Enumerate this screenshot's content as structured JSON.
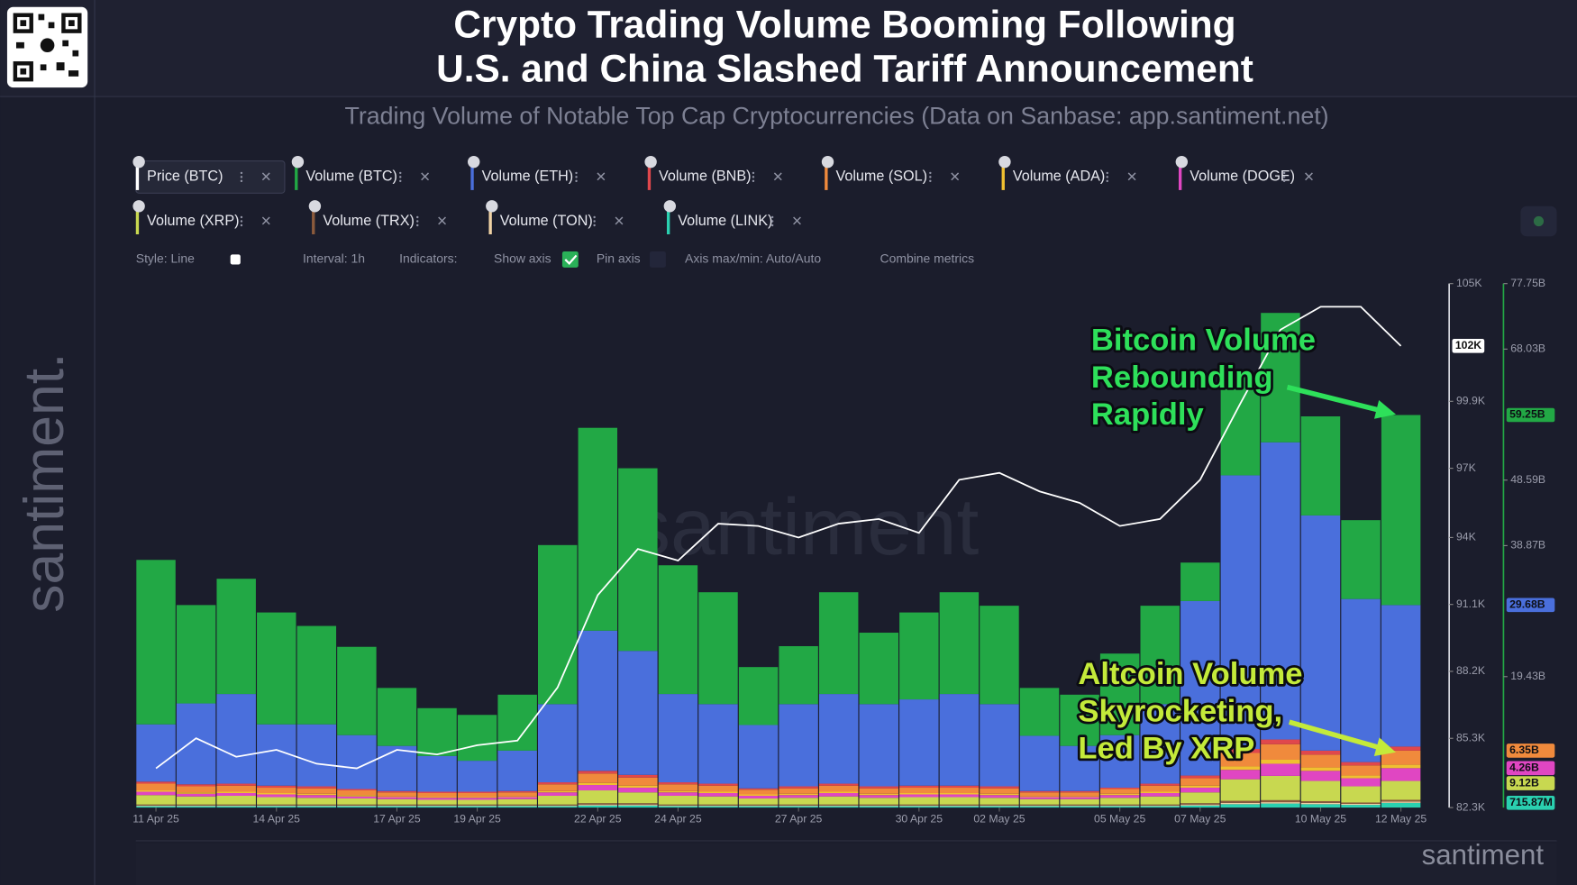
{
  "header": {
    "title": [
      "Crypto Trading Volume Booming Following",
      "U.S. and China Slashed Tariff Announcement"
    ],
    "subtitle": "Trading Volume of Notable Top Cap Cryptocurrencies (Data on Sanbase: app.santiment.net)"
  },
  "branding": {
    "side": "santiment.",
    "corner": "santiment",
    "center": "santiment"
  },
  "toolbar": [
    "Style: Line",
    "Interval: 1h",
    "Indicators:",
    "Show axis",
    "Pin axis",
    "Axis max/min: Auto/Auto",
    "Combine metrics"
  ],
  "chart_data": {
    "type": "stacked_bar",
    "x": [
      "2025-04-11",
      "2025-04-12",
      "2025-04-13",
      "2025-04-14",
      "2025-04-15",
      "2025-04-16",
      "2025-04-17",
      "2025-04-18",
      "2025-04-19",
      "2025-04-20",
      "2025-04-21",
      "2025-04-22",
      "2025-04-23",
      "2025-04-24",
      "2025-04-25",
      "2025-04-26",
      "2025-04-27",
      "2025-04-28",
      "2025-04-29",
      "2025-04-30",
      "2025-05-01",
      "2025-05-02",
      "2025-05-03",
      "2025-05-04",
      "2025-05-05",
      "2025-05-06",
      "2025-05-07",
      "2025-05-08",
      "2025-05-09",
      "2025-05-10",
      "2025-05-11",
      "2025-05-12"
    ],
    "xlim": [
      "2025-04-11",
      "2025-05-12"
    ],
    "xticks": [
      {
        "value": "2025-04-11",
        "label": "11 Apr 25"
      },
      {
        "value": "2025-04-14",
        "label": "14 Apr 25"
      },
      {
        "value": "2025-04-17",
        "label": "17 Apr 25"
      },
      {
        "value": "2025-04-19",
        "label": "19 Apr 25"
      },
      {
        "value": "2025-04-22",
        "label": "22 Apr 25"
      },
      {
        "value": "2025-04-24",
        "label": "24 Apr 25"
      },
      {
        "value": "2025-04-27",
        "label": "27 Apr 25"
      },
      {
        "value": "2025-04-30",
        "label": "30 Apr 25"
      },
      {
        "value": "2025-05-02",
        "label": "02 May 25"
      },
      {
        "value": "2025-05-05",
        "label": "05 May 25"
      },
      {
        "value": "2025-05-07",
        "label": "07 May 25"
      },
      {
        "value": "2025-05-10",
        "label": "10 May 25"
      },
      {
        "value": "2025-05-12",
        "label": "12 May 25"
      }
    ],
    "ylim": [
      82.3,
      105
    ],
    "yticks": [
      {
        "value": 82.3,
        "label": "82.3K"
      },
      {
        "value": 85.3,
        "label": "85.3K"
      },
      {
        "value": 88.2,
        "label": "88.2K"
      },
      {
        "value": 91.1,
        "label": "91.1K"
      },
      {
        "value": 94,
        "label": "94K"
      },
      {
        "value": 97,
        "label": "97K"
      },
      {
        "value": 99.9,
        "label": "99.9K"
      },
      {
        "value": 105,
        "label": "105K"
      }
    ],
    "y2lim": [
      0,
      77.75
    ],
    "y2ticks": [
      {
        "value": 19.43,
        "label": "19.43B"
      },
      {
        "value": 38.87,
        "label": "38.87B"
      },
      {
        "value": 48.59,
        "label": "48.59B"
      },
      {
        "value": 68.03,
        "label": "68.03B"
      },
      {
        "value": 77.75,
        "label": "77.75B"
      }
    ],
    "series": [
      {
        "name": "Price (BTC)",
        "type": "line",
        "axis": "y",
        "color": "#ffffff",
        "badge": "102K",
        "values": [
          84.0,
          85.3,
          84.5,
          84.8,
          84.2,
          84.0,
          84.8,
          84.6,
          85.0,
          85.2,
          87.5,
          91.5,
          93.5,
          93.0,
          94.6,
          94.5,
          94.0,
          94.6,
          94.8,
          94.2,
          96.5,
          96.8,
          96.0,
          95.5,
          94.5,
          94.8,
          96.5,
          99.8,
          103.0,
          104.0,
          104.0,
          102.3
        ]
      },
      {
        "name": "Volume (BTC)",
        "axis": "y2",
        "color": "#22a845",
        "badge": "59.25B",
        "values": [
          24.4,
          14.6,
          17.1,
          16.6,
          14.6,
          13.1,
          8.6,
          7.1,
          6.8,
          8.3,
          23.6,
          30.1,
          27.1,
          19.1,
          16.6,
          8.6,
          8.6,
          15.1,
          10.6,
          12.9,
          15.1,
          14.6,
          7.1,
          7.6,
          12.1,
          14.6,
          5.7,
          14.8,
          19.2,
          14.7,
          11.7,
          28.2
        ]
      },
      {
        "name": "Volume (ETH)",
        "axis": "y2",
        "color": "#4a6fdc",
        "badge": "29.68B",
        "values": [
          8.5,
          12.0,
          13.3,
          9.1,
          9.2,
          8.0,
          6.7,
          5.3,
          4.6,
          6.0,
          11.6,
          20.8,
          18.4,
          13.1,
          11.8,
          9.4,
          12.2,
          13.3,
          12.2,
          12.8,
          13.6,
          12.2,
          8.2,
          6.7,
          7.8,
          11.8,
          25.9,
          40.6,
          44.1,
          34.9,
          24.2,
          21.0
        ]
      },
      {
        "name": "Volume (BNB)",
        "axis": "y2",
        "color": "#e0474c",
        "values": [
          0.3,
          0.3,
          0.3,
          0.3,
          0.3,
          0.2,
          0.2,
          0.2,
          0.2,
          0.2,
          0.3,
          0.4,
          0.4,
          0.3,
          0.3,
          0.2,
          0.3,
          0.3,
          0.3,
          0.3,
          0.3,
          0.3,
          0.2,
          0.2,
          0.2,
          0.3,
          0.4,
          0.6,
          0.7,
          0.6,
          0.5,
          0.6
        ]
      },
      {
        "name": "Volume (SOL)",
        "axis": "y2",
        "color": "#f08a3c",
        "badge": "6.35B",
        "values": [
          1.0,
          0.9,
          0.9,
          0.8,
          0.8,
          0.7,
          0.6,
          0.6,
          0.6,
          0.6,
          1.0,
          1.4,
          1.2,
          1.0,
          0.9,
          0.7,
          0.8,
          0.9,
          0.8,
          0.8,
          0.8,
          0.8,
          0.6,
          0.6,
          0.7,
          0.9,
          1.1,
          2.0,
          2.3,
          1.9,
          1.5,
          2.1
        ]
      },
      {
        "name": "Volume (ADA)",
        "axis": "y2",
        "color": "#f0c030",
        "values": [
          0.2,
          0.2,
          0.2,
          0.2,
          0.2,
          0.2,
          0.1,
          0.1,
          0.1,
          0.1,
          0.2,
          0.3,
          0.3,
          0.2,
          0.2,
          0.2,
          0.2,
          0.2,
          0.2,
          0.2,
          0.2,
          0.2,
          0.1,
          0.1,
          0.2,
          0.2,
          0.3,
          0.5,
          0.6,
          0.5,
          0.4,
          0.5
        ]
      },
      {
        "name": "Volume (DOGE)",
        "axis": "y2",
        "color": "#e046c2",
        "badge": "4.26B",
        "values": [
          0.5,
          0.4,
          0.4,
          0.4,
          0.4,
          0.3,
          0.3,
          0.3,
          0.3,
          0.3,
          0.5,
          0.8,
          0.7,
          0.5,
          0.5,
          0.4,
          0.4,
          0.5,
          0.4,
          0.4,
          0.4,
          0.4,
          0.3,
          0.3,
          0.4,
          0.5,
          0.7,
          1.4,
          1.8,
          1.5,
          1.2,
          1.9
        ]
      },
      {
        "name": "Volume (XRP)",
        "axis": "y2",
        "color": "#c8d850",
        "badge": "9.12B",
        "values": [
          1.4,
          1.2,
          1.3,
          1.1,
          1.0,
          0.9,
          0.8,
          0.7,
          0.7,
          0.8,
          1.3,
          1.9,
          1.6,
          1.3,
          1.2,
          0.9,
          1.0,
          1.2,
          1.0,
          1.1,
          1.1,
          1.0,
          0.8,
          0.8,
          1.0,
          1.2,
          1.6,
          3.2,
          3.6,
          3.0,
          2.4,
          2.8
        ]
      },
      {
        "name": "Volume (TRX)",
        "axis": "y2",
        "color": "#8b5a3c",
        "values": [
          0.15,
          0.15,
          0.15,
          0.15,
          0.15,
          0.15,
          0.15,
          0.15,
          0.15,
          0.15,
          0.15,
          0.2,
          0.2,
          0.15,
          0.15,
          0.15,
          0.15,
          0.15,
          0.15,
          0.15,
          0.15,
          0.15,
          0.15,
          0.15,
          0.15,
          0.15,
          0.2,
          0.3,
          0.3,
          0.25,
          0.2,
          0.25
        ]
      },
      {
        "name": "Volume (TON)",
        "axis": "y2",
        "color": "#f0d2a4",
        "values": [
          0.1,
          0.1,
          0.1,
          0.1,
          0.1,
          0.1,
          0.1,
          0.1,
          0.1,
          0.1,
          0.1,
          0.15,
          0.15,
          0.1,
          0.1,
          0.1,
          0.1,
          0.1,
          0.1,
          0.1,
          0.1,
          0.1,
          0.1,
          0.1,
          0.1,
          0.1,
          0.15,
          0.2,
          0.2,
          0.2,
          0.15,
          0.2
        ]
      },
      {
        "name": "Volume (LINK)",
        "axis": "y2",
        "color": "#2ad0b0",
        "badge": "715.87M",
        "values": [
          0.2,
          0.2,
          0.2,
          0.2,
          0.2,
          0.2,
          0.2,
          0.2,
          0.2,
          0.2,
          0.2,
          0.3,
          0.3,
          0.2,
          0.2,
          0.2,
          0.2,
          0.2,
          0.2,
          0.2,
          0.2,
          0.2,
          0.2,
          0.2,
          0.2,
          0.2,
          0.3,
          0.5,
          0.6,
          0.5,
          0.4,
          0.7
        ]
      }
    ],
    "annotations": [
      {
        "lines": [
          "Bitcoin Volume",
          "Rebounding",
          "Rapidly"
        ],
        "color": "#2ee05a"
      },
      {
        "lines": [
          "Altcoin Volume",
          "Skyrocketing,",
          "Led By XRP"
        ],
        "color": "#c4ea3a"
      }
    ]
  }
}
